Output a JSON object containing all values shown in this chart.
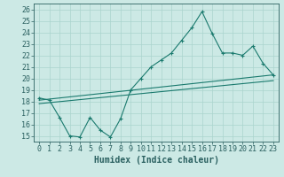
{
  "xlabel": "Humidex (Indice chaleur)",
  "background_color": "#cce9e5",
  "grid_color": "#aad4ce",
  "line_color": "#1a7a6e",
  "xlim": [
    -0.5,
    23.5
  ],
  "ylim": [
    14.5,
    26.5
  ],
  "xticks": [
    0,
    1,
    2,
    3,
    4,
    5,
    6,
    7,
    8,
    9,
    10,
    11,
    12,
    13,
    14,
    15,
    16,
    17,
    18,
    19,
    20,
    21,
    22,
    23
  ],
  "yticks": [
    15,
    16,
    17,
    18,
    19,
    20,
    21,
    22,
    23,
    24,
    25,
    26
  ],
  "line1_x": [
    0,
    1,
    2,
    3,
    4,
    5,
    6,
    7,
    8,
    9,
    10,
    11,
    12,
    13,
    14,
    15,
    16,
    17,
    18,
    19,
    20,
    21,
    22,
    23
  ],
  "line1_y": [
    18.3,
    18.1,
    16.6,
    15.0,
    14.9,
    16.6,
    15.5,
    14.9,
    16.5,
    19.0,
    20.0,
    21.0,
    21.6,
    22.2,
    23.3,
    24.4,
    25.8,
    23.9,
    22.2,
    22.2,
    22.0,
    22.8,
    21.3,
    20.3
  ],
  "line2_x": [
    0,
    23
  ],
  "line2_y": [
    18.1,
    20.3
  ],
  "line3_x": [
    0,
    23
  ],
  "line3_y": [
    17.8,
    19.8
  ],
  "fontsize_tick": 6,
  "fontsize_label": 7
}
